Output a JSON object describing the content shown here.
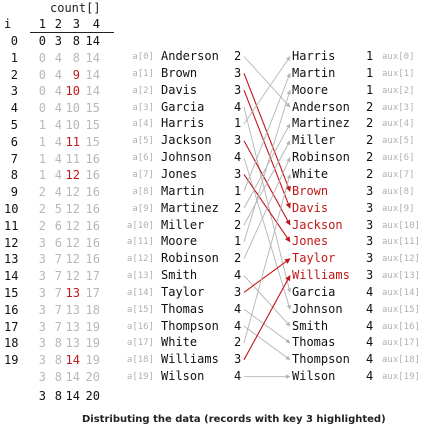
{
  "count_table": {
    "title": "count[]",
    "index_label": "i",
    "column_headers": [
      "1",
      "2",
      "3",
      "4"
    ],
    "rows": [
      {
        "i": "0",
        "values": [
          "0",
          "3",
          "8",
          "14"
        ],
        "red_col": null
      },
      {
        "i": "1",
        "values": [
          "0",
          "4",
          "8",
          "14"
        ],
        "red_col": null
      },
      {
        "i": "2",
        "values": [
          "0",
          "4",
          "9",
          "14"
        ],
        "red_col": 2
      },
      {
        "i": "3",
        "values": [
          "0",
          "4",
          "10",
          "14"
        ],
        "red_col": 2
      },
      {
        "i": "4",
        "values": [
          "0",
          "4",
          "10",
          "15"
        ],
        "red_col": null
      },
      {
        "i": "5",
        "values": [
          "1",
          "4",
          "10",
          "15"
        ],
        "red_col": null
      },
      {
        "i": "6",
        "values": [
          "1",
          "4",
          "11",
          "15"
        ],
        "red_col": 2
      },
      {
        "i": "7",
        "values": [
          "1",
          "4",
          "11",
          "16"
        ],
        "red_col": null
      },
      {
        "i": "8",
        "values": [
          "1",
          "4",
          "12",
          "16"
        ],
        "red_col": 2
      },
      {
        "i": "9",
        "values": [
          "2",
          "4",
          "12",
          "16"
        ],
        "red_col": null
      },
      {
        "i": "10",
        "values": [
          "2",
          "5",
          "12",
          "16"
        ],
        "red_col": null
      },
      {
        "i": "11",
        "values": [
          "2",
          "6",
          "12",
          "16"
        ],
        "red_col": null
      },
      {
        "i": "12",
        "values": [
          "3",
          "6",
          "12",
          "16"
        ],
        "red_col": null
      },
      {
        "i": "13",
        "values": [
          "3",
          "7",
          "12",
          "16"
        ],
        "red_col": null
      },
      {
        "i": "14",
        "values": [
          "3",
          "7",
          "12",
          "17"
        ],
        "red_col": null
      },
      {
        "i": "15",
        "values": [
          "3",
          "7",
          "13",
          "17"
        ],
        "red_col": 2
      },
      {
        "i": "16",
        "values": [
          "3",
          "7",
          "13",
          "18"
        ],
        "red_col": null
      },
      {
        "i": "17",
        "values": [
          "3",
          "7",
          "13",
          "19"
        ],
        "red_col": null
      },
      {
        "i": "18",
        "values": [
          "3",
          "8",
          "13",
          "19"
        ],
        "red_col": null
      },
      {
        "i": "19",
        "values": [
          "3",
          "8",
          "14",
          "19"
        ],
        "red_col": 2
      },
      {
        "i": "",
        "values": [
          "3",
          "8",
          "14",
          "20"
        ],
        "red_col": null
      }
    ],
    "final_row": [
      "3",
      "8",
      "14",
      "20"
    ]
  },
  "input_records": [
    {
      "index": "a[0]",
      "name": "Anderson",
      "key": "2"
    },
    {
      "index": "a[1]",
      "name": "Brown",
      "key": "3"
    },
    {
      "index": "a[2]",
      "name": "Davis",
      "key": "3"
    },
    {
      "index": "a[3]",
      "name": "Garcia",
      "key": "4"
    },
    {
      "index": "a[4]",
      "name": "Harris",
      "key": "1"
    },
    {
      "index": "a[5]",
      "name": "Jackson",
      "key": "3"
    },
    {
      "index": "a[6]",
      "name": "Johnson",
      "key": "4"
    },
    {
      "index": "a[7]",
      "name": "Jones",
      "key": "3"
    },
    {
      "index": "a[8]",
      "name": "Martin",
      "key": "1"
    },
    {
      "index": "a[9]",
      "name": "Martinez",
      "key": "2"
    },
    {
      "index": "a[10]",
      "name": "Miller",
      "key": "2"
    },
    {
      "index": "a[11]",
      "name": "Moore",
      "key": "1"
    },
    {
      "index": "a[12]",
      "name": "Robinson",
      "key": "2"
    },
    {
      "index": "a[13]",
      "name": "Smith",
      "key": "4"
    },
    {
      "index": "a[14]",
      "name": "Taylor",
      "key": "3"
    },
    {
      "index": "a[15]",
      "name": "Thomas",
      "key": "4"
    },
    {
      "index": "a[16]",
      "name": "Thompson",
      "key": "4"
    },
    {
      "index": "a[17]",
      "name": "White",
      "key": "2"
    },
    {
      "index": "a[18]",
      "name": "Williams",
      "key": "3"
    },
    {
      "index": "a[19]",
      "name": "Wilson",
      "key": "4"
    }
  ],
  "output_records": [
    {
      "index": "aux[0]",
      "name": "Harris",
      "key": "1",
      "highlight": false
    },
    {
      "index": "aux[1]",
      "name": "Martin",
      "key": "1",
      "highlight": false
    },
    {
      "index": "aux[2]",
      "name": "Moore",
      "key": "1",
      "highlight": false
    },
    {
      "index": "aux[3]",
      "name": "Anderson",
      "key": "2",
      "highlight": false
    },
    {
      "index": "aux[4]",
      "name": "Martinez",
      "key": "2",
      "highlight": false
    },
    {
      "index": "aux[5]",
      "name": "Miller",
      "key": "2",
      "highlight": false
    },
    {
      "index": "aux[6]",
      "name": "Robinson",
      "key": "2",
      "highlight": false
    },
    {
      "index": "aux[7]",
      "name": "White",
      "key": "2",
      "highlight": false
    },
    {
      "index": "aux[8]",
      "name": "Brown",
      "key": "3",
      "highlight": true
    },
    {
      "index": "aux[9]",
      "name": "Davis",
      "key": "3",
      "highlight": true
    },
    {
      "index": "aux[10]",
      "name": "Jackson",
      "key": "3",
      "highlight": true
    },
    {
      "index": "aux[11]",
      "name": "Jones",
      "key": "3",
      "highlight": true
    },
    {
      "index": "aux[12]",
      "name": "Taylor",
      "key": "3",
      "highlight": true
    },
    {
      "index": "aux[13]",
      "name": "Williams",
      "key": "3",
      "highlight": true
    },
    {
      "index": "aux[14]",
      "name": "Garcia",
      "key": "4",
      "highlight": false
    },
    {
      "index": "aux[15]",
      "name": "Johnson",
      "key": "4",
      "highlight": false
    },
    {
      "index": "aux[16]",
      "name": "Smith",
      "key": "4",
      "highlight": false
    },
    {
      "index": "aux[17]",
      "name": "Thomas",
      "key": "4",
      "highlight": false
    },
    {
      "index": "aux[18]",
      "name": "Thompson",
      "key": "4",
      "highlight": false
    },
    {
      "index": "aux[19]",
      "name": "Wilson",
      "key": "4",
      "highlight": false
    }
  ],
  "moves": [
    {
      "from": 0,
      "to": 3
    },
    {
      "from": 1,
      "to": 8
    },
    {
      "from": 2,
      "to": 9
    },
    {
      "from": 3,
      "to": 14
    },
    {
      "from": 4,
      "to": 0
    },
    {
      "from": 5,
      "to": 10
    },
    {
      "from": 6,
      "to": 15
    },
    {
      "from": 7,
      "to": 11
    },
    {
      "from": 8,
      "to": 1
    },
    {
      "from": 9,
      "to": 4
    },
    {
      "from": 10,
      "to": 5
    },
    {
      "from": 11,
      "to": 2
    },
    {
      "from": 12,
      "to": 6
    },
    {
      "from": 13,
      "to": 16
    },
    {
      "from": 14,
      "to": 12
    },
    {
      "from": 15,
      "to": 17
    },
    {
      "from": 16,
      "to": 18
    },
    {
      "from": 17,
      "to": 7
    },
    {
      "from": 18,
      "to": 13
    },
    {
      "from": 19,
      "to": 19
    }
  ],
  "highlight_key": "3",
  "colors": {
    "highlight": "#c01818",
    "plain_line": "#b4b4b4",
    "faded_text": "#b8b8b8",
    "text": "#111111"
  },
  "caption": "Distributing the data (records with key 3 highlighted)"
}
